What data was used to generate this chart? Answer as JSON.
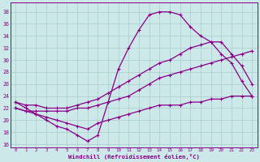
{
  "xlabel": "Windchill (Refroidissement éolien,°C)",
  "bg_color": "#cce8e8",
  "grid_color": "#aacccc",
  "line_color": "#880088",
  "xlim": [
    -0.5,
    23.5
  ],
  "ylim": [
    15.5,
    39.5
  ],
  "yticks": [
    16,
    18,
    20,
    22,
    24,
    26,
    28,
    30,
    32,
    34,
    36,
    38
  ],
  "xticks": [
    0,
    1,
    2,
    3,
    4,
    5,
    6,
    7,
    8,
    9,
    10,
    11,
    12,
    13,
    14,
    15,
    16,
    17,
    18,
    19,
    20,
    21,
    22,
    23
  ],
  "hours": [
    0,
    1,
    2,
    3,
    4,
    5,
    6,
    7,
    8,
    9,
    10,
    11,
    12,
    13,
    14,
    15,
    16,
    17,
    18,
    19,
    20,
    21,
    22,
    23
  ],
  "temp_curve": [
    23.0,
    22.0,
    21.0,
    20.0,
    19.0,
    18.5,
    17.5,
    16.5,
    17.5,
    23.0,
    28.5,
    32.0,
    35.0,
    37.5,
    38.0,
    38.0,
    37.5,
    35.5,
    34.0,
    33.0,
    31.0,
    29.5,
    26.5,
    24.0
  ],
  "upper_diag": [
    23.0,
    22.5,
    22.5,
    22.0,
    22.0,
    22.0,
    22.5,
    23.0,
    23.5,
    24.5,
    25.5,
    26.5,
    27.5,
    28.5,
    29.5,
    30.0,
    31.0,
    32.0,
    32.5,
    33.0,
    33.0,
    31.0,
    29.0,
    26.0
  ],
  "middle_diag": [
    22.0,
    21.5,
    21.5,
    21.5,
    21.5,
    21.5,
    22.0,
    22.0,
    22.5,
    23.0,
    23.5,
    24.0,
    25.0,
    26.0,
    27.0,
    27.5,
    28.0,
    28.5,
    29.0,
    29.5,
    30.0,
    30.5,
    31.0,
    31.5
  ],
  "windchill": [
    22.0,
    21.5,
    21.0,
    20.5,
    20.0,
    19.5,
    19.0,
    18.5,
    19.5,
    20.0,
    20.5,
    21.0,
    21.5,
    22.0,
    22.5,
    22.5,
    22.5,
    23.0,
    23.0,
    23.5,
    23.5,
    24.0,
    24.0,
    24.0
  ],
  "marker": "+",
  "markersize": 3.5,
  "linewidth": 0.9
}
